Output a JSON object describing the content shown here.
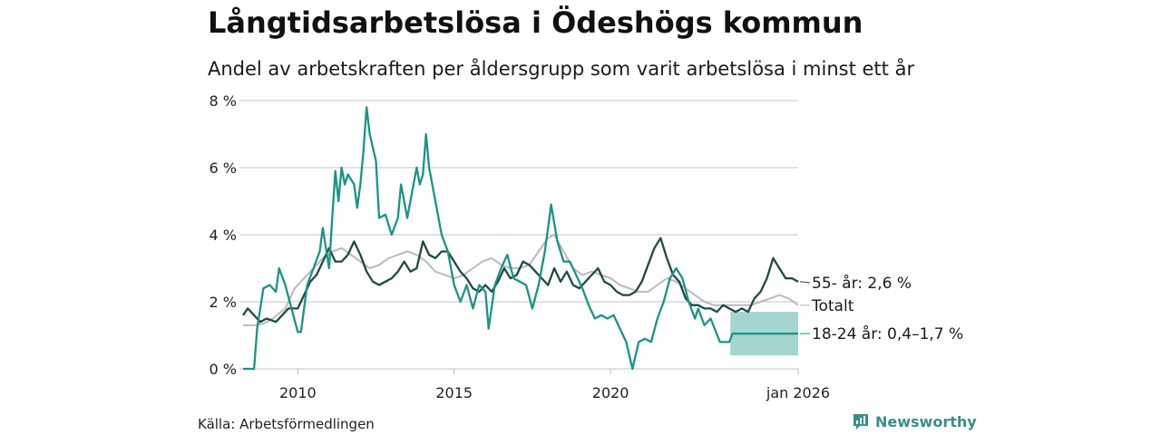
{
  "header": {
    "title": "Långtidsarbetslösa i Ödeshögs kommun",
    "subtitle": "Andel av arbetskraften per åldersgrupp som varit arbetslösa i minst ett år"
  },
  "footer": {
    "source": "Källa: Arbetsförmedlingen",
    "brand": "Newsworthy"
  },
  "colors": {
    "youth": "#1a9485",
    "youth_band": "#9fd3cb",
    "older": "#1f4a42",
    "total": "#b9b9c0",
    "grid": "#d9d9d9"
  },
  "icons": {
    "brand": "newsworthy-logo-icon"
  },
  "chart_data": {
    "type": "line",
    "title": "Långtidsarbetslösa i Ödeshögs kommun",
    "xlabel": "",
    "ylabel": "",
    "xlim": [
      2008.25,
      2026.0
    ],
    "ylim": [
      0,
      8
    ],
    "y_ticks": [
      0,
      2,
      4,
      6,
      8
    ],
    "y_tick_labels": [
      "0 %",
      "2 %",
      "4 %",
      "6 %",
      "8 %"
    ],
    "x_ticks": [
      2010,
      2015,
      2020,
      2026
    ],
    "x_tick_labels": [
      "2010",
      "2015",
      "2020",
      "jan 2026"
    ],
    "grid": true,
    "series": [
      {
        "name": "Totalt",
        "end_label": "Totalt",
        "color": "#b9b9c0",
        "points": [
          [
            2008.25,
            1.3
          ],
          [
            2008.6,
            1.3
          ],
          [
            2008.9,
            1.35
          ],
          [
            2009.2,
            1.5
          ],
          [
            2009.6,
            1.8
          ],
          [
            2009.9,
            2.4
          ],
          [
            2010.2,
            2.7
          ],
          [
            2010.5,
            3.0
          ],
          [
            2010.8,
            3.3
          ],
          [
            2011.1,
            3.5
          ],
          [
            2011.4,
            3.6
          ],
          [
            2011.7,
            3.4
          ],
          [
            2012.0,
            3.2
          ],
          [
            2012.3,
            3.0
          ],
          [
            2012.6,
            3.1
          ],
          [
            2012.9,
            3.3
          ],
          [
            2013.2,
            3.4
          ],
          [
            2013.5,
            3.5
          ],
          [
            2013.8,
            3.4
          ],
          [
            2014.1,
            3.2
          ],
          [
            2014.4,
            2.9
          ],
          [
            2014.7,
            2.8
          ],
          [
            2015.0,
            2.7
          ],
          [
            2015.3,
            2.8
          ],
          [
            2015.6,
            3.0
          ],
          [
            2015.9,
            3.2
          ],
          [
            2016.2,
            3.3
          ],
          [
            2016.5,
            3.1
          ],
          [
            2016.8,
            3.0
          ],
          [
            2017.1,
            3.0
          ],
          [
            2017.4,
            3.1
          ],
          [
            2017.7,
            3.5
          ],
          [
            2018.0,
            3.9
          ],
          [
            2018.2,
            4.0
          ],
          [
            2018.5,
            3.5
          ],
          [
            2018.8,
            3.0
          ],
          [
            2019.1,
            2.8
          ],
          [
            2019.4,
            2.9
          ],
          [
            2019.7,
            2.8
          ],
          [
            2020.0,
            2.7
          ],
          [
            2020.3,
            2.5
          ],
          [
            2020.6,
            2.4
          ],
          [
            2020.9,
            2.3
          ],
          [
            2021.2,
            2.3
          ],
          [
            2021.5,
            2.5
          ],
          [
            2021.8,
            2.7
          ],
          [
            2022.1,
            2.6
          ],
          [
            2022.4,
            2.4
          ],
          [
            2022.7,
            2.2
          ],
          [
            2023.0,
            2.0
          ],
          [
            2023.3,
            1.9
          ],
          [
            2023.6,
            1.9
          ],
          [
            2023.9,
            1.9
          ],
          [
            2024.2,
            1.9
          ],
          [
            2024.5,
            1.9
          ],
          [
            2024.8,
            2.0
          ],
          [
            2025.1,
            2.1
          ],
          [
            2025.4,
            2.2
          ],
          [
            2025.7,
            2.1
          ],
          [
            2026.0,
            1.9
          ]
        ]
      },
      {
        "name": "55- år",
        "end_label": "55- år: 2,6 %",
        "color": "#1f4a42",
        "points": [
          [
            2008.25,
            1.6
          ],
          [
            2008.4,
            1.8
          ],
          [
            2008.6,
            1.6
          ],
          [
            2008.8,
            1.4
          ],
          [
            2009.0,
            1.5
          ],
          [
            2009.3,
            1.4
          ],
          [
            2009.5,
            1.6
          ],
          [
            2009.7,
            1.8
          ],
          [
            2010.0,
            1.8
          ],
          [
            2010.2,
            2.2
          ],
          [
            2010.4,
            2.6
          ],
          [
            2010.6,
            2.8
          ],
          [
            2010.8,
            3.2
          ],
          [
            2011.0,
            3.6
          ],
          [
            2011.2,
            3.2
          ],
          [
            2011.4,
            3.2
          ],
          [
            2011.6,
            3.4
          ],
          [
            2011.8,
            3.8
          ],
          [
            2012.0,
            3.4
          ],
          [
            2012.2,
            2.9
          ],
          [
            2012.4,
            2.6
          ],
          [
            2012.6,
            2.5
          ],
          [
            2012.8,
            2.6
          ],
          [
            2013.0,
            2.7
          ],
          [
            2013.2,
            2.9
          ],
          [
            2013.4,
            3.2
          ],
          [
            2013.6,
            2.9
          ],
          [
            2013.8,
            3.0
          ],
          [
            2014.0,
            3.8
          ],
          [
            2014.2,
            3.4
          ],
          [
            2014.4,
            3.3
          ],
          [
            2014.6,
            3.5
          ],
          [
            2014.8,
            3.5
          ],
          [
            2015.0,
            3.2
          ],
          [
            2015.2,
            2.9
          ],
          [
            2015.4,
            2.7
          ],
          [
            2015.6,
            2.4
          ],
          [
            2015.8,
            2.3
          ],
          [
            2016.0,
            2.5
          ],
          [
            2016.2,
            2.3
          ],
          [
            2016.4,
            2.6
          ],
          [
            2016.6,
            3.0
          ],
          [
            2016.8,
            2.7
          ],
          [
            2017.0,
            2.8
          ],
          [
            2017.2,
            3.2
          ],
          [
            2017.4,
            3.1
          ],
          [
            2017.6,
            2.9
          ],
          [
            2017.8,
            2.7
          ],
          [
            2018.0,
            2.5
          ],
          [
            2018.2,
            3.0
          ],
          [
            2018.4,
            2.6
          ],
          [
            2018.6,
            2.9
          ],
          [
            2018.8,
            2.5
          ],
          [
            2019.0,
            2.4
          ],
          [
            2019.2,
            2.6
          ],
          [
            2019.4,
            2.8
          ],
          [
            2019.6,
            3.0
          ],
          [
            2019.8,
            2.6
          ],
          [
            2020.0,
            2.5
          ],
          [
            2020.2,
            2.3
          ],
          [
            2020.4,
            2.2
          ],
          [
            2020.6,
            2.2
          ],
          [
            2020.8,
            2.3
          ],
          [
            2021.0,
            2.6
          ],
          [
            2021.2,
            3.1
          ],
          [
            2021.4,
            3.6
          ],
          [
            2021.6,
            3.9
          ],
          [
            2021.8,
            3.3
          ],
          [
            2022.0,
            2.8
          ],
          [
            2022.2,
            2.6
          ],
          [
            2022.4,
            2.1
          ],
          [
            2022.6,
            1.9
          ],
          [
            2022.8,
            1.9
          ],
          [
            2023.0,
            1.8
          ],
          [
            2023.2,
            1.8
          ],
          [
            2023.4,
            1.7
          ],
          [
            2023.6,
            1.9
          ],
          [
            2023.8,
            1.8
          ],
          [
            2024.0,
            1.7
          ],
          [
            2024.2,
            1.8
          ],
          [
            2024.4,
            1.7
          ],
          [
            2024.6,
            2.1
          ],
          [
            2024.8,
            2.3
          ],
          [
            2025.0,
            2.7
          ],
          [
            2025.2,
            3.3
          ],
          [
            2025.4,
            3.0
          ],
          [
            2025.6,
            2.7
          ],
          [
            2025.8,
            2.7
          ],
          [
            2026.0,
            2.6
          ]
        ]
      },
      {
        "name": "18-24 år",
        "end_label": "18-24 år: 0,4–1,7 %",
        "color": "#1a9485",
        "points": [
          [
            2008.25,
            0.0
          ],
          [
            2008.6,
            0.0
          ],
          [
            2008.7,
            1.2
          ],
          [
            2008.9,
            2.4
          ],
          [
            2009.1,
            2.5
          ],
          [
            2009.3,
            2.3
          ],
          [
            2009.4,
            3.0
          ],
          [
            2009.6,
            2.5
          ],
          [
            2009.8,
            1.8
          ],
          [
            2010.0,
            1.1
          ],
          [
            2010.1,
            1.1
          ],
          [
            2010.3,
            2.5
          ],
          [
            2010.5,
            3.0
          ],
          [
            2010.7,
            3.5
          ],
          [
            2010.8,
            4.2
          ],
          [
            2011.0,
            3.0
          ],
          [
            2011.1,
            4.5
          ],
          [
            2011.2,
            5.9
          ],
          [
            2011.3,
            5.0
          ],
          [
            2011.4,
            6.0
          ],
          [
            2011.5,
            5.5
          ],
          [
            2011.6,
            5.8
          ],
          [
            2011.8,
            5.5
          ],
          [
            2011.9,
            4.8
          ],
          [
            2012.0,
            5.5
          ],
          [
            2012.1,
            6.5
          ],
          [
            2012.2,
            7.8
          ],
          [
            2012.3,
            7.0
          ],
          [
            2012.5,
            6.2
          ],
          [
            2012.6,
            4.5
          ],
          [
            2012.8,
            4.6
          ],
          [
            2013.0,
            4.0
          ],
          [
            2013.2,
            4.5
          ],
          [
            2013.3,
            5.5
          ],
          [
            2013.4,
            5.0
          ],
          [
            2013.5,
            4.5
          ],
          [
            2013.7,
            5.5
          ],
          [
            2013.8,
            6.0
          ],
          [
            2013.9,
            5.5
          ],
          [
            2014.0,
            5.8
          ],
          [
            2014.1,
            7.0
          ],
          [
            2014.2,
            6.0
          ],
          [
            2014.4,
            5.0
          ],
          [
            2014.6,
            4.0
          ],
          [
            2014.8,
            3.5
          ],
          [
            2015.0,
            2.5
          ],
          [
            2015.2,
            2.0
          ],
          [
            2015.4,
            2.5
          ],
          [
            2015.6,
            1.8
          ],
          [
            2015.8,
            2.5
          ],
          [
            2016.0,
            2.3
          ],
          [
            2016.1,
            1.2
          ],
          [
            2016.3,
            2.5
          ],
          [
            2016.5,
            3.0
          ],
          [
            2016.7,
            3.4
          ],
          [
            2016.9,
            2.7
          ],
          [
            2017.1,
            2.6
          ],
          [
            2017.3,
            2.5
          ],
          [
            2017.5,
            1.8
          ],
          [
            2017.7,
            2.5
          ],
          [
            2017.9,
            3.5
          ],
          [
            2018.0,
            4.2
          ],
          [
            2018.1,
            4.9
          ],
          [
            2018.3,
            3.8
          ],
          [
            2018.5,
            3.2
          ],
          [
            2018.7,
            3.2
          ],
          [
            2018.9,
            2.8
          ],
          [
            2019.1,
            2.4
          ],
          [
            2019.3,
            1.9
          ],
          [
            2019.5,
            1.5
          ],
          [
            2019.7,
            1.6
          ],
          [
            2019.9,
            1.5
          ],
          [
            2020.1,
            1.6
          ],
          [
            2020.3,
            1.2
          ],
          [
            2020.5,
            0.8
          ],
          [
            2020.7,
            0.0
          ],
          [
            2020.9,
            0.8
          ],
          [
            2021.1,
            0.9
          ],
          [
            2021.3,
            0.8
          ],
          [
            2021.5,
            1.5
          ],
          [
            2021.7,
            2.0
          ],
          [
            2021.9,
            2.7
          ],
          [
            2022.1,
            3.0
          ],
          [
            2022.3,
            2.7
          ],
          [
            2022.5,
            2.0
          ],
          [
            2022.7,
            1.5
          ],
          [
            2022.8,
            1.8
          ],
          [
            2023.0,
            1.3
          ],
          [
            2023.2,
            1.5
          ],
          [
            2023.5,
            0.8
          ],
          [
            2023.8,
            0.8
          ],
          [
            2023.9,
            1.05
          ],
          [
            2024.3,
            1.05
          ],
          [
            2025.0,
            1.05
          ],
          [
            2025.5,
            1.05
          ],
          [
            2026.0,
            1.05
          ]
        ]
      }
    ],
    "band": {
      "series": "18-24 år",
      "x_range": [
        2023.83,
        2026.0
      ],
      "low": 0.4,
      "high": 1.7
    }
  }
}
